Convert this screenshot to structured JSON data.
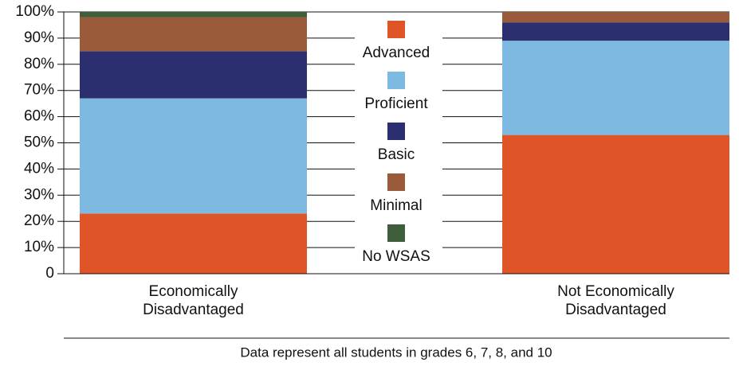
{
  "chart_data": {
    "type": "stacked_bar",
    "categories": [
      "Economically Disadvantaged",
      "Not Economically Disadvantaged"
    ],
    "series": [
      {
        "name": "Advanced",
        "color": "#e05527",
        "values": [
          23,
          53
        ]
      },
      {
        "name": "Proficient",
        "color": "#7db9e0",
        "values": [
          44,
          36
        ]
      },
      {
        "name": "Basic",
        "color": "#2b2f6f",
        "values": [
          18,
          7
        ]
      },
      {
        "name": "Minimal",
        "color": "#9a5b3a",
        "values": [
          13,
          4
        ]
      },
      {
        "name": "No WSAS",
        "color": "#3e5e3c",
        "values": [
          2,
          0
        ]
      }
    ],
    "ylim": [
      0,
      100
    ],
    "yticks": [
      0,
      {
        "value": 10,
        "label": "10%"
      },
      {
        "value": 20,
        "label": "20%"
      },
      {
        "value": 30,
        "label": "30%"
      },
      {
        "value": 40,
        "label": "40%"
      },
      {
        "value": 50,
        "label": "50%"
      },
      {
        "value": 60,
        "label": "60%"
      },
      {
        "value": 70,
        "label": "70%"
      },
      {
        "value": 80,
        "label": "80%"
      },
      {
        "value": 90,
        "label": "90%"
      },
      {
        "value": 100,
        "label": "100%"
      }
    ],
    "grid": true,
    "footnote": "Data represent all students in grades 6, 7, 8, and 10"
  }
}
